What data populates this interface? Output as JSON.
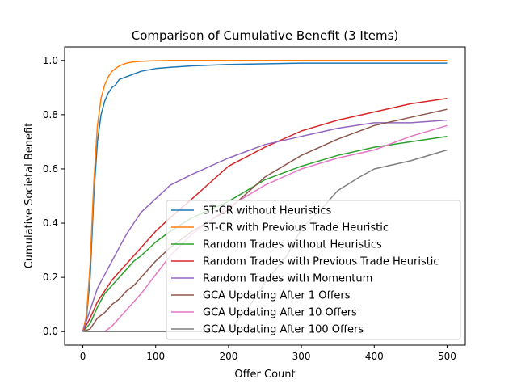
{
  "chart_data": {
    "type": "line",
    "title": "Comparison of Cumulative Benefit (3 Items)",
    "xlabel": "Offer Count",
    "ylabel": "Cumulative Societal Benefit",
    "xlim": [
      -25,
      525
    ],
    "ylim": [
      -0.05,
      1.05
    ],
    "xticks": [
      0,
      100,
      200,
      300,
      400,
      500
    ],
    "yticks": [
      0.0,
      0.2,
      0.4,
      0.6,
      0.8,
      1.0
    ],
    "grid": false,
    "legend_position": "lower-right",
    "series": [
      {
        "name": "ST-CR without Heuristics",
        "color": "#1f77b4",
        "x": [
          0,
          5,
          10,
          15,
          20,
          25,
          30,
          35,
          40,
          45,
          50,
          60,
          70,
          80,
          100,
          120,
          150,
          200,
          300,
          500
        ],
        "y": [
          0,
          0.05,
          0.2,
          0.5,
          0.7,
          0.8,
          0.85,
          0.88,
          0.9,
          0.91,
          0.93,
          0.94,
          0.95,
          0.96,
          0.97,
          0.975,
          0.98,
          0.985,
          0.99,
          0.99
        ]
      },
      {
        "name": "ST-CR with Previous Trade Heuristic",
        "color": "#ff7f0e",
        "x": [
          0,
          5,
          10,
          15,
          20,
          25,
          30,
          35,
          40,
          45,
          50,
          60,
          70,
          90,
          120,
          200,
          500
        ],
        "y": [
          0,
          0.06,
          0.25,
          0.55,
          0.76,
          0.86,
          0.91,
          0.94,
          0.96,
          0.97,
          0.98,
          0.99,
          0.995,
          0.998,
          1.0,
          1.0,
          1.0
        ]
      },
      {
        "name": "Random Trades without Heuristics",
        "color": "#2ca02c",
        "x": [
          0,
          10,
          20,
          30,
          40,
          50,
          60,
          70,
          80,
          100,
          120,
          150,
          175,
          200,
          250,
          300,
          350,
          400,
          450,
          500
        ],
        "y": [
          0,
          0.03,
          0.09,
          0.14,
          0.17,
          0.2,
          0.23,
          0.26,
          0.28,
          0.33,
          0.37,
          0.42,
          0.45,
          0.48,
          0.56,
          0.61,
          0.65,
          0.68,
          0.7,
          0.72
        ]
      },
      {
        "name": "Random Trades with Previous Trade Heuristic",
        "color": "#d62728",
        "x": [
          0,
          10,
          20,
          30,
          40,
          50,
          60,
          70,
          80,
          100,
          120,
          150,
          175,
          200,
          250,
          300,
          350,
          400,
          450,
          500
        ],
        "y": [
          0,
          0.05,
          0.11,
          0.15,
          0.19,
          0.22,
          0.25,
          0.28,
          0.31,
          0.37,
          0.42,
          0.49,
          0.55,
          0.61,
          0.68,
          0.74,
          0.78,
          0.81,
          0.84,
          0.86
        ]
      },
      {
        "name": "Random Trades with Momentum",
        "color": "#9467bd",
        "x": [
          0,
          10,
          20,
          30,
          40,
          50,
          60,
          70,
          80,
          100,
          120,
          150,
          175,
          200,
          250,
          300,
          350,
          400,
          450,
          500
        ],
        "y": [
          0,
          0.08,
          0.16,
          0.21,
          0.26,
          0.31,
          0.36,
          0.4,
          0.44,
          0.49,
          0.54,
          0.58,
          0.61,
          0.64,
          0.69,
          0.72,
          0.75,
          0.77,
          0.77,
          0.78
        ]
      },
      {
        "name": "GCA Updating After 1 Offers",
        "color": "#8c564b",
        "x": [
          0,
          10,
          20,
          30,
          40,
          50,
          60,
          70,
          80,
          100,
          120,
          150,
          175,
          200,
          250,
          300,
          350,
          400,
          450,
          500
        ],
        "y": [
          0,
          0.01,
          0.05,
          0.07,
          0.1,
          0.12,
          0.15,
          0.17,
          0.2,
          0.26,
          0.31,
          0.37,
          0.41,
          0.45,
          0.57,
          0.65,
          0.71,
          0.76,
          0.79,
          0.82
        ]
      },
      {
        "name": "GCA Updating After 10 Offers",
        "color": "#e377c2",
        "x": [
          0,
          30,
          35,
          40,
          50,
          60,
          70,
          80,
          100,
          120,
          150,
          175,
          200,
          250,
          300,
          350,
          400,
          450,
          500
        ],
        "y": [
          0,
          0,
          0.01,
          0.02,
          0.05,
          0.08,
          0.11,
          0.14,
          0.21,
          0.28,
          0.36,
          0.41,
          0.46,
          0.54,
          0.6,
          0.64,
          0.67,
          0.72,
          0.76
        ]
      },
      {
        "name": "GCA Updating After 100 Offers",
        "color": "#7f7f7f",
        "x": [
          0,
          200,
          230,
          250,
          280,
          300,
          330,
          350,
          380,
          400,
          450,
          500
        ],
        "y": [
          0,
          0,
          0.1,
          0.18,
          0.28,
          0.38,
          0.46,
          0.52,
          0.57,
          0.6,
          0.63,
          0.67
        ]
      }
    ]
  }
}
